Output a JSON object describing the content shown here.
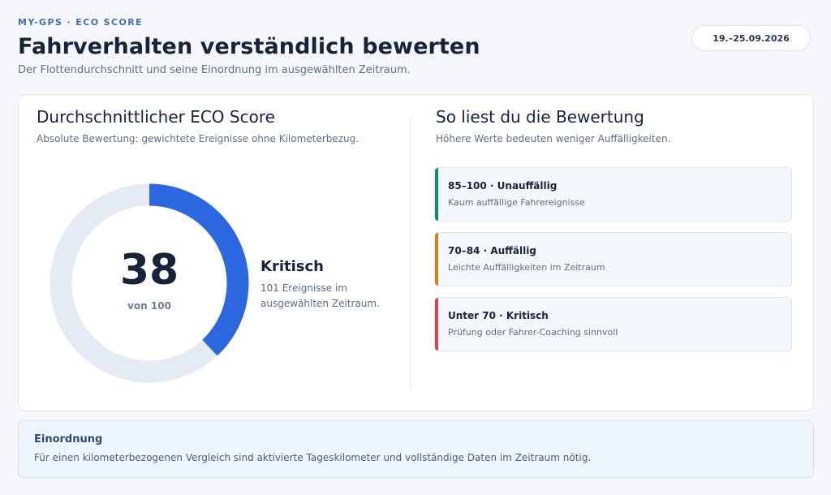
{
  "header": {
    "eyebrow": "MY-GPS · ECO SCORE",
    "title": "Fahrverhalten verständlich bewerten",
    "subtitle": "Der Flottendurchschnitt und seine Einordnung im ausgewählten Zeitraum.",
    "date_range": "19.–25.09.2026"
  },
  "score_card": {
    "title": "Durchschnittlicher ECO Score",
    "subtitle": "Absolute Bewertung: gewichtete Ereignisse ohne Kilometerbezug.",
    "score": 38,
    "score_display": "38",
    "score_max_label": "von 100",
    "score_max": 100,
    "status_label": "Kritisch",
    "status_desc": "101 Ereignisse im ausgewählten Zeitraum.",
    "gauge_color": "#2b67e0",
    "gauge_track_color": "#e4ebf5"
  },
  "legend_card": {
    "title": "So liest du die Bewertung",
    "subtitle": "Höhere Werte bedeuten weniger Auffälligkeiten.",
    "items": [
      {
        "title": "85–100 · Unauffällig",
        "desc": "Kaum auffällige Fahrereignisse",
        "color": "#13886a"
      },
      {
        "title": "70–84 · Auffällig",
        "desc": "Leichte Auffälligkeiten im Zeitraum",
        "color": "#c2881c"
      },
      {
        "title": "Unter 70 · Kritisch",
        "desc": "Prüfung oder Fahrer-Coaching sinnvoll",
        "color": "#c94a55"
      }
    ]
  },
  "note": {
    "title": "Einordnung",
    "text": "Für einen kilometerbezogenen Vergleich sind aktivierte Tageskilometer und vollständige Daten im Zeitraum nötig."
  }
}
